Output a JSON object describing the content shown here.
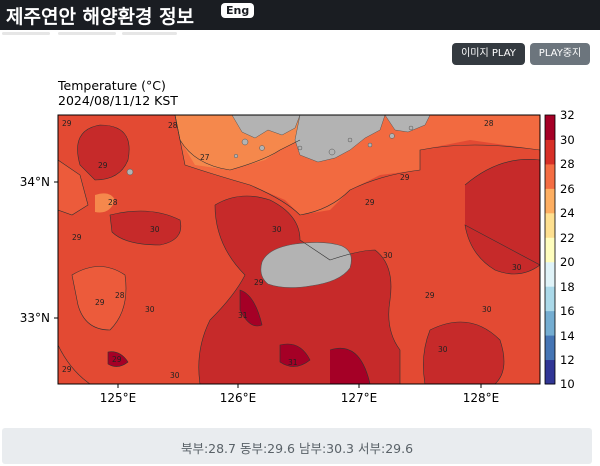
{
  "header": {
    "title": "제주연안 해양환경 정보",
    "lang_badge": "Eng"
  },
  "controls": {
    "play_label": "이미지 PLAY",
    "stop_label": "PLAY중지"
  },
  "map": {
    "title_line1": "Temperature (°C)",
    "title_line2": "2024/08/11/12 KST",
    "lat_labels": [
      "34°N",
      "33°N"
    ],
    "lon_labels": [
      "125°E",
      "126°E",
      "127°E",
      "128°E"
    ],
    "contour_labels": [
      "29",
      "28",
      "27",
      "29",
      "28",
      "29",
      "30",
      "30",
      "29",
      "28",
      "29",
      "30",
      "31",
      "29",
      "30",
      "29",
      "30",
      "30",
      "31",
      "29",
      "30",
      "29",
      "28",
      "29",
      "30"
    ]
  },
  "colorbar": {
    "ticks": [
      "32",
      "30",
      "28",
      "26",
      "24",
      "22",
      "20",
      "18",
      "16",
      "14",
      "12",
      "10"
    ],
    "colors": [
      "#313695",
      "#4575b4",
      "#74add1",
      "#abd9e9",
      "#e0f3f8",
      "#fffebe",
      "#fee090",
      "#fdae61",
      "#f46d43",
      "#d73027",
      "#a50026"
    ]
  },
  "summary": {
    "text": "북부:28.7 동부:29.6 남부:30.3 서부:29.6"
  }
}
